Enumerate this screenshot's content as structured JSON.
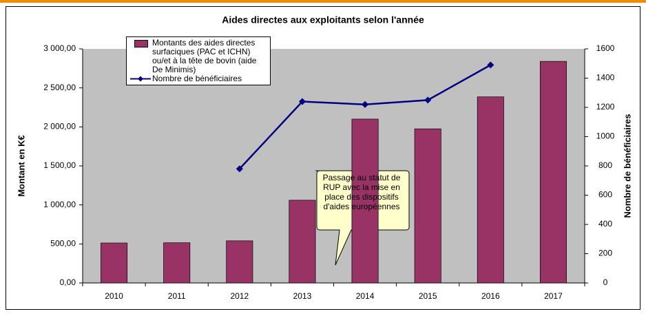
{
  "chart_data": {
    "type": "bar",
    "title": "Aides directes aux exploitants selon l'année",
    "categories": [
      "2010",
      "2011",
      "2012",
      "2013",
      "2014",
      "2015",
      "2016",
      "2017"
    ],
    "series": [
      {
        "name": "Montants des aides directes surfaciques (PAC et ICHN) ou/et à la tête de bovin (aide De Minimis)",
        "type": "bar",
        "color": "#993366",
        "values": [
          512,
          515,
          540,
          1060,
          2100,
          1975,
          2385,
          2840
        ]
      },
      {
        "name": "Nombre de bénéficiaires",
        "type": "line",
        "axis": "y2",
        "color": "#000080",
        "values": [
          null,
          null,
          780,
          1240,
          1220,
          1250,
          1490,
          null
        ]
      }
    ],
    "ylabel": "Montant en K€",
    "y2label": "Nombre de bénéficiaires",
    "ylim": [
      0,
      3000
    ],
    "yticks": [
      {
        "value": 0,
        "label": "0,00"
      },
      {
        "value": 500,
        "label": "500,00"
      },
      {
        "value": 1000,
        "label": "1 000,00"
      },
      {
        "value": 1500,
        "label": "1 500,00"
      },
      {
        "value": 2000,
        "label": "2 000,00"
      },
      {
        "value": 2500,
        "label": "2 500,00"
      },
      {
        "value": 3000,
        "label": "3 000,00"
      }
    ],
    "y2lim": [
      0,
      1600
    ],
    "y2ticks": [
      0,
      200,
      400,
      600,
      800,
      1000,
      1200,
      1400,
      1600
    ],
    "grid": false,
    "annotation": "Passage au statut de RUP avec la mise en place des dispositifs d'aides européennes"
  }
}
